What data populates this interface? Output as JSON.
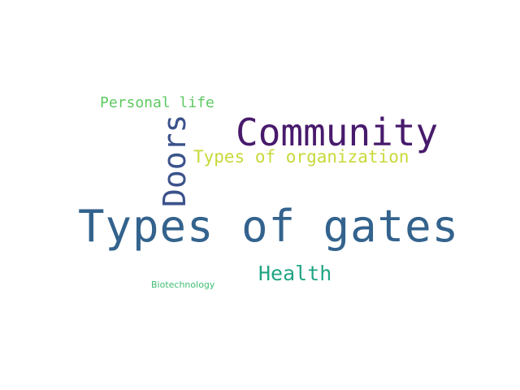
{
  "word_cloud": {
    "words": [
      {
        "key": "gates",
        "text": "Types of gates",
        "color": "#33638d"
      },
      {
        "key": "community",
        "text": "Community",
        "color": "#481a6c"
      },
      {
        "key": "doors",
        "text": "Doors",
        "color": "#3b528b"
      },
      {
        "key": "org",
        "text": "Types of organization",
        "color": "#c8d93a"
      },
      {
        "key": "personal",
        "text": "Personal life",
        "color": "#5ec962"
      },
      {
        "key": "health",
        "text": "Health",
        "color": "#21a585"
      },
      {
        "key": "bio",
        "text": "Biotechnology",
        "color": "#3fbc73"
      }
    ]
  }
}
